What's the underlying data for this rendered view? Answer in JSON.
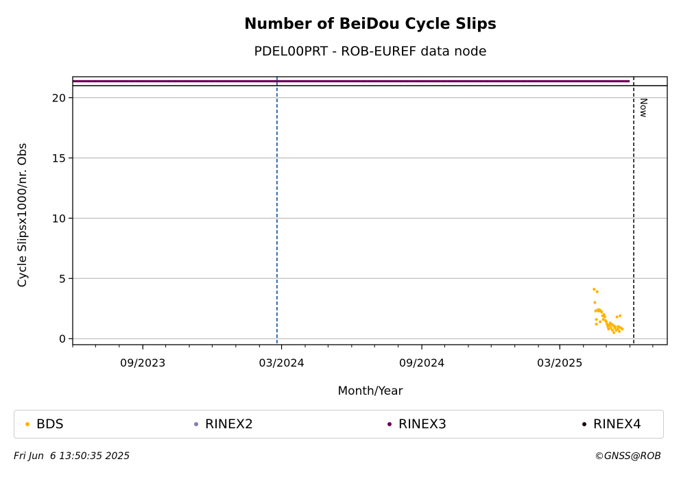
{
  "chart_data": {
    "type": "scatter",
    "title": "Number of BeiDou Cycle Slips",
    "subtitle": "PDEL00PRT - ROB-EUREF data node",
    "xlabel": "Month/Year",
    "ylabel": "Cycle Slipsx1000/nr. Obs",
    "x_range": [
      "2023-06-01",
      "2025-07-20"
    ],
    "ylim": [
      -0.5,
      21.0
    ],
    "y_ticks": [
      0,
      5,
      10,
      15,
      20
    ],
    "x_ticks": [
      {
        "date": "2023-09-01",
        "label": "09/2023"
      },
      {
        "date": "2024-03-01",
        "label": "03/2024"
      },
      {
        "date": "2024-09-01",
        "label": "09/2024"
      },
      {
        "date": "2025-03-01",
        "label": "03/2025"
      }
    ],
    "grid": "horizontal",
    "event_line": {
      "date": "2024-02-24",
      "color": "#1f5fa0",
      "style": "dashed"
    },
    "now_line": {
      "date": "2025-06-06",
      "label": "Now"
    },
    "rinex3_band": {
      "start": "2023-06-01",
      "end": "2025-05-31",
      "color": "#6b0057"
    },
    "series": [
      {
        "name": "BDS",
        "color": "#ffb300",
        "points": [
          [
            "2025-04-15",
            4.1
          ],
          [
            "2025-04-16",
            3.0
          ],
          [
            "2025-04-17",
            2.3
          ],
          [
            "2025-04-18",
            1.2
          ],
          [
            "2025-04-18",
            1.6
          ],
          [
            "2025-04-19",
            3.9
          ],
          [
            "2025-04-20",
            2.4
          ],
          [
            "2025-04-21",
            2.3
          ],
          [
            "2025-04-22",
            2.4
          ],
          [
            "2025-04-23",
            1.4
          ],
          [
            "2025-04-24",
            2.3
          ],
          [
            "2025-04-25",
            2.2
          ],
          [
            "2025-04-26",
            1.9
          ],
          [
            "2025-04-27",
            1.6
          ],
          [
            "2025-04-28",
            2.0
          ],
          [
            "2025-04-29",
            1.8
          ],
          [
            "2025-04-30",
            1.5
          ],
          [
            "2025-05-01",
            1.4
          ],
          [
            "2025-05-02",
            1.2
          ],
          [
            "2025-05-03",
            1.0
          ],
          [
            "2025-05-04",
            0.8
          ],
          [
            "2025-05-05",
            1.1
          ],
          [
            "2025-05-06",
            1.3
          ],
          [
            "2025-05-07",
            0.9
          ],
          [
            "2025-05-08",
            1.2
          ],
          [
            "2025-05-09",
            0.7
          ],
          [
            "2025-05-10",
            1.1
          ],
          [
            "2025-05-11",
            0.5
          ],
          [
            "2025-05-12",
            0.9
          ],
          [
            "2025-05-13",
            1.0
          ],
          [
            "2025-05-14",
            0.7
          ],
          [
            "2025-05-15",
            1.8
          ],
          [
            "2025-05-16",
            0.8
          ],
          [
            "2025-05-17",
            1.0
          ],
          [
            "2025-05-18",
            0.6
          ],
          [
            "2025-05-19",
            1.9
          ],
          [
            "2025-05-20",
            0.9
          ],
          [
            "2025-05-22",
            0.8
          ]
        ]
      }
    ],
    "legend": [
      {
        "name": "BDS",
        "color": "#ffb300"
      },
      {
        "name": "RINEX2",
        "color": "#8579b8"
      },
      {
        "name": "RINEX3",
        "color": "#6b0057"
      },
      {
        "name": "RINEX4",
        "color": "#1a0014"
      }
    ]
  },
  "footer": {
    "timestamp": "Fri Jun  6 13:50:35 2025",
    "copyright": "©GNSS@ROB"
  }
}
